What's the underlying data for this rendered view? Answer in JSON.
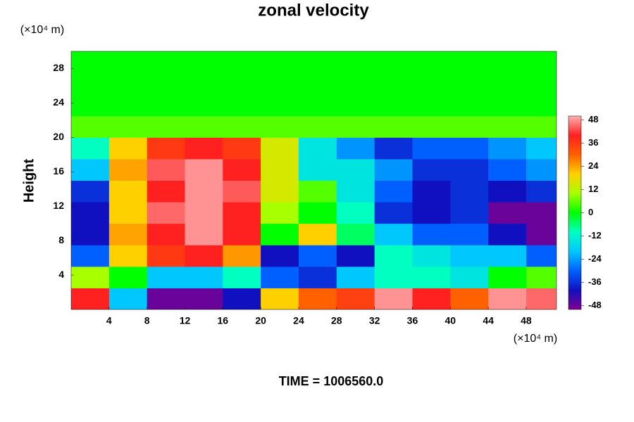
{
  "chart_data": {
    "type": "contour",
    "title": "zonal velocity",
    "y_label": "Height",
    "x_unit": "(×10⁴ m)",
    "y_unit": "(×10⁴ m)",
    "footer": "TIME = 1006560.0",
    "x": [
      0,
      4,
      8,
      12,
      16,
      20,
      24,
      28,
      32,
      36,
      40,
      44,
      48,
      52
    ],
    "y": [
      0,
      2.5,
      5,
      7.5,
      10,
      12.5,
      15,
      17.5,
      20,
      22.5,
      25,
      27.5,
      30
    ],
    "z": [
      [
        40,
        -20,
        -48,
        -48,
        -40,
        20,
        30,
        35,
        48,
        40,
        30,
        48,
        45
      ],
      [
        10,
        0,
        -20,
        -20,
        -10,
        -30,
        -36,
        -20,
        -10,
        -10,
        -15,
        0,
        5
      ],
      [
        -30,
        20,
        36,
        40,
        25,
        -40,
        -30,
        -40,
        -10,
        -15,
        -20,
        -20,
        -30
      ],
      [
        -40,
        24,
        40,
        48,
        40,
        0,
        20,
        -5,
        -20,
        -30,
        -30,
        -40,
        -48
      ],
      [
        -40,
        20,
        45,
        48,
        40,
        10,
        0,
        -10,
        -36,
        -40,
        -36,
        -48,
        -48
      ],
      [
        -36,
        20,
        40,
        48,
        44,
        15,
        5,
        -15,
        -30,
        -40,
        -36,
        -40,
        -36
      ],
      [
        -20,
        24,
        44,
        48,
        40,
        15,
        -15,
        -15,
        -25,
        -36,
        -36,
        -30,
        -25
      ],
      [
        -10,
        20,
        36,
        40,
        36,
        15,
        -15,
        -25,
        -36,
        -30,
        -30,
        -25,
        -20
      ],
      [
        5,
        5,
        5,
        5,
        5,
        5,
        5,
        5,
        5,
        5,
        5,
        5,
        5
      ],
      [
        0,
        0,
        0,
        0,
        0,
        0,
        0,
        0,
        0,
        0,
        0,
        0,
        0
      ],
      [
        0,
        0,
        0,
        0,
        0,
        0,
        0,
        0,
        0,
        0,
        0,
        0,
        0
      ],
      [
        0,
        0,
        0,
        0,
        0,
        0,
        0,
        0,
        0,
        0,
        0,
        0,
        0
      ]
    ],
    "xlim": [
      0,
      51.2
    ],
    "ylim": [
      0,
      30
    ],
    "xticks": [
      4,
      8,
      12,
      16,
      20,
      24,
      28,
      32,
      36,
      40,
      44,
      48
    ],
    "yticks": [
      4,
      8,
      12,
      16,
      20,
      24,
      28
    ],
    "clim": [
      -50,
      50
    ],
    "cticks": [
      48,
      36,
      24,
      12,
      0,
      -12,
      -24,
      -36,
      -48
    ],
    "colormap": [
      "#800090",
      "#1010c0",
      "#0060ff",
      "#00c8ff",
      "#00ffc0",
      "#00ff00",
      "#a8ff00",
      "#ffd000",
      "#ff6000",
      "#ff2020",
      "#ffb0b0"
    ]
  }
}
